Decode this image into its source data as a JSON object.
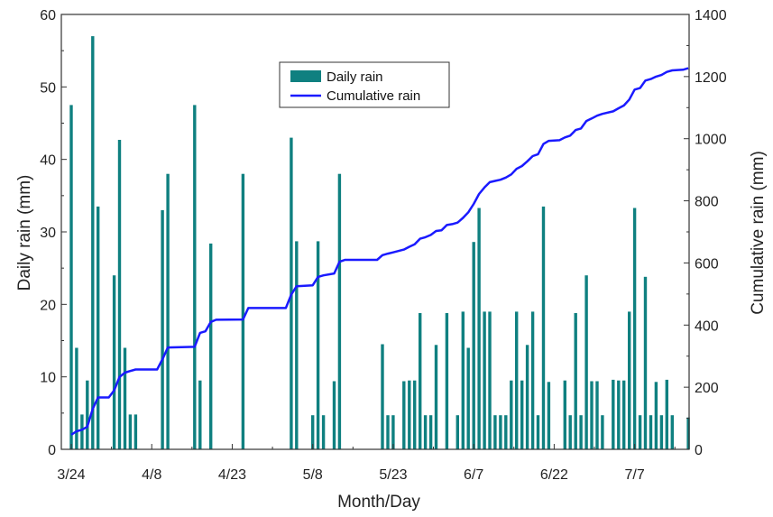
{
  "chart_data": {
    "type": "bar+line",
    "title": "",
    "xlabel": "Month/Day",
    "ylabel_left": "Daily rain (mm)",
    "ylabel_right": "Cumulative rain (mm)",
    "x_range_days": [
      0,
      104
    ],
    "ylim_left": [
      0,
      60
    ],
    "ylim_right": [
      0,
      1400
    ],
    "x_ticks": [
      {
        "day": 0,
        "label": "3/24"
      },
      {
        "day": 15,
        "label": "4/8"
      },
      {
        "day": 30,
        "label": "4/23"
      },
      {
        "day": 45,
        "label": "5/8"
      },
      {
        "day": 60,
        "label": "5/23"
      },
      {
        "day": 75,
        "label": "6/7"
      },
      {
        "day": 90,
        "label": "6/22"
      },
      {
        "day": 105,
        "label": "7/7"
      }
    ],
    "y_ticks_left": [
      0,
      10,
      20,
      30,
      40,
      50,
      60
    ],
    "y_ticks_right": [
      0,
      200,
      400,
      600,
      800,
      1000,
      1200,
      1400
    ],
    "legend_position": "top-center",
    "grid": false,
    "colors": {
      "bar": "#0f8080",
      "line": "#1a1aff"
    },
    "series": [
      {
        "name": "Daily rain",
        "type": "bar",
        "axis": "left",
        "points": [
          [
            0,
            47.5
          ],
          [
            1,
            14
          ],
          [
            2,
            4.8
          ],
          [
            3,
            9.5
          ],
          [
            4,
            57
          ],
          [
            5,
            33.5
          ],
          [
            8,
            24
          ],
          [
            9,
            42.7
          ],
          [
            10,
            14
          ],
          [
            11,
            4.8
          ],
          [
            12,
            4.8
          ],
          [
            17,
            33
          ],
          [
            18,
            38
          ],
          [
            23,
            47.5
          ],
          [
            24,
            9.5
          ],
          [
            26,
            28.4
          ],
          [
            32,
            38
          ],
          [
            41,
            43
          ],
          [
            42,
            28.7
          ],
          [
            45,
            4.7
          ],
          [
            46,
            28.7
          ],
          [
            47,
            4.7
          ],
          [
            49,
            9.4
          ],
          [
            50,
            38
          ],
          [
            58,
            14.5
          ],
          [
            59,
            4.7
          ],
          [
            60,
            4.7
          ],
          [
            62,
            9.4
          ],
          [
            63,
            9.5
          ],
          [
            64,
            9.5
          ],
          [
            65,
            18.8
          ],
          [
            66,
            4.7
          ],
          [
            67,
            4.7
          ],
          [
            68,
            14.4
          ],
          [
            70,
            18.8
          ],
          [
            72,
            4.7
          ],
          [
            73,
            19
          ],
          [
            74,
            14
          ],
          [
            75,
            28.6
          ],
          [
            76,
            33.3
          ],
          [
            77,
            19
          ],
          [
            78,
            19
          ],
          [
            79,
            4.7
          ],
          [
            80,
            4.7
          ],
          [
            81,
            4.7
          ],
          [
            82,
            9.5
          ],
          [
            83,
            19
          ],
          [
            84,
            9.5
          ],
          [
            85,
            14.4
          ],
          [
            86,
            19
          ],
          [
            87,
            4.7
          ],
          [
            88,
            33.5
          ],
          [
            89,
            9.3
          ],
          [
            92,
            9.5
          ],
          [
            93,
            4.7
          ],
          [
            94,
            18.8
          ],
          [
            95,
            4.7
          ],
          [
            96,
            24
          ],
          [
            97,
            9.4
          ],
          [
            98,
            9.4
          ],
          [
            99,
            4.7
          ],
          [
            101,
            9.6
          ],
          [
            102,
            9.5
          ],
          [
            103,
            9.5
          ],
          [
            104,
            19
          ],
          [
            105,
            33.3
          ],
          [
            106,
            4.7
          ],
          [
            107,
            23.8
          ],
          [
            108,
            4.7
          ],
          [
            109,
            9.3
          ],
          [
            110,
            4.7
          ],
          [
            111,
            9.6
          ],
          [
            112,
            4.7
          ],
          [
            115,
            4.4
          ]
        ]
      },
      {
        "name": "Cumulative rain",
        "type": "line",
        "axis": "right",
        "points": [
          [
            0,
            47
          ],
          [
            1,
            58
          ],
          [
            2,
            63
          ],
          [
            3,
            73
          ],
          [
            4,
            130
          ],
          [
            5,
            167
          ],
          [
            7,
            167
          ],
          [
            8,
            190
          ],
          [
            9,
            233
          ],
          [
            10,
            247
          ],
          [
            11,
            252
          ],
          [
            12,
            257
          ],
          [
            16,
            257
          ],
          [
            17,
            290
          ],
          [
            18,
            328
          ],
          [
            23,
            330
          ],
          [
            24,
            375
          ],
          [
            25,
            380
          ],
          [
            26,
            410
          ],
          [
            27,
            417
          ],
          [
            32,
            418
          ],
          [
            33,
            455
          ],
          [
            40,
            455
          ],
          [
            41,
            498
          ],
          [
            42,
            525
          ],
          [
            45,
            528
          ],
          [
            46,
            555
          ],
          [
            47,
            560
          ],
          [
            49,
            566
          ],
          [
            50,
            604
          ],
          [
            51,
            610
          ],
          [
            57,
            610
          ],
          [
            58,
            625
          ],
          [
            59,
            630
          ],
          [
            60,
            634
          ],
          [
            62,
            643
          ],
          [
            63,
            652
          ],
          [
            64,
            660
          ],
          [
            65,
            678
          ],
          [
            66,
            683
          ],
          [
            67,
            690
          ],
          [
            68,
            703
          ],
          [
            69,
            705
          ],
          [
            70,
            722
          ],
          [
            71,
            725
          ],
          [
            72,
            730
          ],
          [
            73,
            745
          ],
          [
            74,
            763
          ],
          [
            75,
            790
          ],
          [
            76,
            822
          ],
          [
            77,
            843
          ],
          [
            78,
            860
          ],
          [
            79,
            864
          ],
          [
            80,
            868
          ],
          [
            81,
            875
          ],
          [
            82,
            885
          ],
          [
            83,
            903
          ],
          [
            84,
            912
          ],
          [
            85,
            927
          ],
          [
            86,
            944
          ],
          [
            87,
            950
          ],
          [
            88,
            983
          ],
          [
            89,
            993
          ],
          [
            91,
            995
          ],
          [
            92,
            1004
          ],
          [
            93,
            1010
          ],
          [
            94,
            1028
          ],
          [
            95,
            1033
          ],
          [
            96,
            1057
          ],
          [
            97,
            1065
          ],
          [
            98,
            1074
          ],
          [
            99,
            1080
          ],
          [
            101,
            1088
          ],
          [
            102,
            1098
          ],
          [
            103,
            1107
          ],
          [
            104,
            1126
          ],
          [
            105,
            1158
          ],
          [
            106,
            1163
          ],
          [
            107,
            1187
          ],
          [
            108,
            1192
          ],
          [
            109,
            1200
          ],
          [
            110,
            1205
          ],
          [
            111,
            1215
          ],
          [
            112,
            1220
          ],
          [
            114,
            1222
          ],
          [
            115,
            1227
          ]
        ]
      }
    ]
  }
}
